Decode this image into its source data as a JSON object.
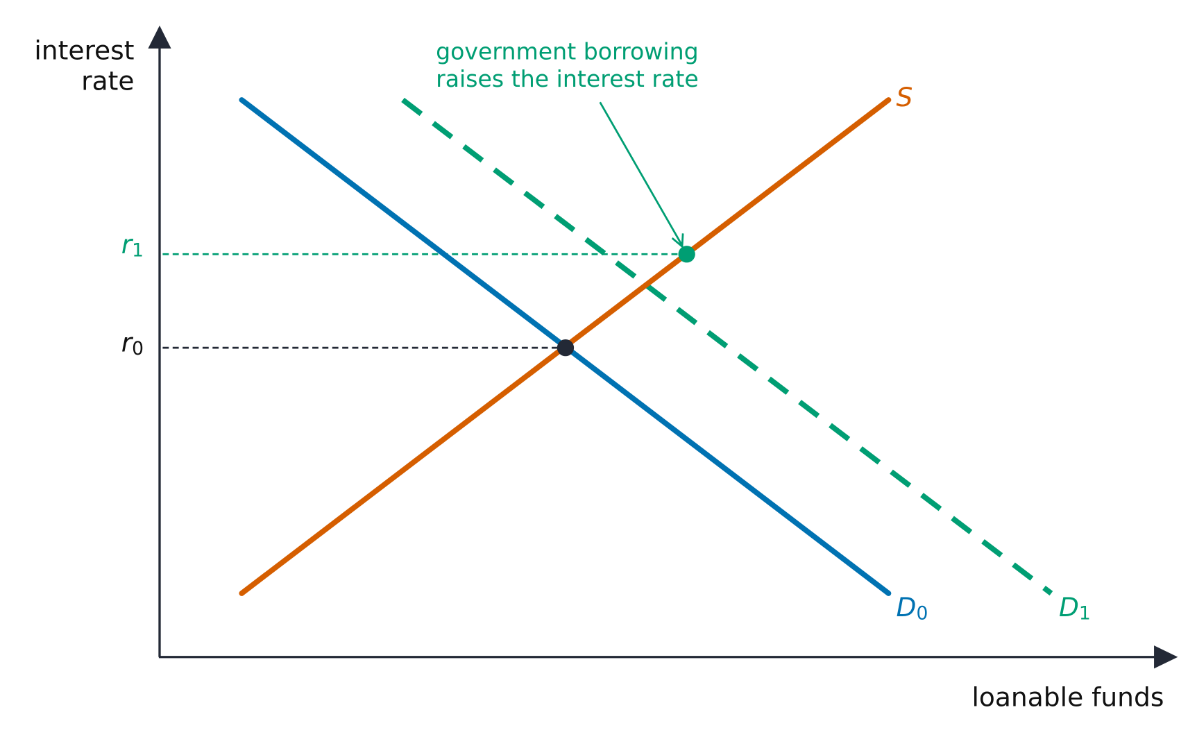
{
  "axes": {
    "y_label": [
      "interest",
      "rate"
    ],
    "x_label": "loanable funds"
  },
  "curves": {
    "supply": {
      "text": "S"
    },
    "demand_0": {
      "text": "D",
      "sub": "0"
    },
    "demand_1": {
      "text": "D",
      "sub": "1"
    }
  },
  "levels": {
    "r0": {
      "text": "r",
      "sub": "0"
    },
    "r1": {
      "text": "r",
      "sub": "1"
    }
  },
  "annotation": [
    "government borrowing",
    "raises the interest rate"
  ]
}
